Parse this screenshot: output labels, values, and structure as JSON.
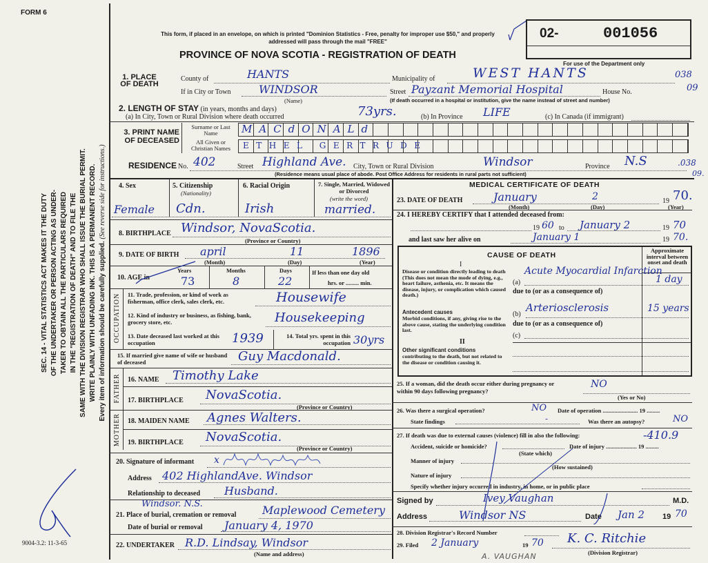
{
  "form": {
    "form_no": "FORM 6",
    "print_code": "9004-3.2: 11-3-65",
    "notice": "This form, if placed in an envelope, on which is printed \"Dominion Statistics - Free, penalty for improper use $50,\" and properly addressed will pass through the mail \"FREE\"",
    "title": "PROVINCE OF NOVA SCOTIA - REGISTRATION OF DEATH",
    "reg_prefix": "02-",
    "reg_number": "001056",
    "dept_only": "For use of the Department only",
    "side_lines": [
      "SEC. 14 - VITAL STATISTICS ACT MAKES IT THE DUTY",
      "OF THE UNDERTAKER OR PERSON ACTING AS UNDER-",
      "TAKER TO OBTAIN ALL THE PARTICULARS REQUIRED",
      "IN THE \"REGISTRATION OF DEATH\" AND TO FILE THE",
      "SAME WITH THE DIVISION REGISTRAR WHO SHALL ISSUE THE BURIAL PERMIT.",
      "WRITE PLAINLY WITH UNFADING INK. THIS IS A PERMANENT RECORD."
    ],
    "side_footer": "Every item of information should be carefully supplied.",
    "side_note": "(See reverse side for instructions.)"
  },
  "place": {
    "label": "1. PLACE OF DEATH",
    "county_label": "County of",
    "county": "HANTS",
    "municipality_label": "Municipality of",
    "municipality": "WEST HANTS",
    "code1": "038",
    "city_label": "If in City or Town",
    "city": "WINDSOR",
    "name_hint": "(Name)",
    "street_label": "Street",
    "street": "Payzant Memorial Hospital",
    "house_label": "House No.",
    "code2": "09",
    "hospital_hint": "(If death occurred in a hospital or institution, give the name instead of street and number)"
  },
  "stay": {
    "label": "2. LENGTH OF STAY",
    "hint": "(in years, months and days)",
    "a_label": "(a) In City, Town or Rural Division where death occurred",
    "a": "73yrs.",
    "b_label": "(b) In Province",
    "b": "LIFE",
    "c_label": "(c) In Canada (if immigrant)"
  },
  "name": {
    "label": "3. PRINT NAME OF DECEASED",
    "surname_label": "Surname or Last Name",
    "surname": "MACdONALd",
    "given_label": "All Given or Christian Names",
    "given": "ETHEL GERTRUDE"
  },
  "residence": {
    "label": "RESIDENCE",
    "no_label": "No.",
    "no": "402",
    "street_label": "Street",
    "street": "Highland Ave.",
    "city_label": "City, Town or Rural Division",
    "city": "Windsor",
    "province_label": "Province",
    "province": "N.S",
    "code": ".038",
    "code2": "09.",
    "hint": "(Residence means usual place of abode. Post Office Address for residents in rural parts not sufficient)"
  },
  "personal": {
    "sex_label": "4. Sex",
    "sex": "Female",
    "citizenship_label": "5. Citizenship",
    "citizenship_hint": "(Nationality)",
    "citizenship": "Cdn.",
    "racial_label": "6. Racial Origin",
    "racial": "Irish",
    "marital_label": "7. Single, Married, Widowed or Divorced",
    "marital_hint": "(write the word)",
    "marital": "married.",
    "birthplace_label": "8. BIRTHPLACE",
    "birthplace": "Windsor, NovaScotia.",
    "prov_hint": "(Province or Country)",
    "dob_label": "9. DATE OF BIRTH",
    "dob_month": "april",
    "dob_day": "11",
    "dob_year": "1896",
    "month_hint": "(Month)",
    "day_hint": "(Day)",
    "year_hint": "(Year)",
    "age_label": "10. AGE in",
    "years_label": "Years",
    "years": "73",
    "months_label": "Months",
    "months": "8",
    "days_label": "Days",
    "days": "22",
    "lt_day": "If less than one day old",
    "hrs": "hrs. or ......... min."
  },
  "occupation": {
    "side": "OCCUPATION",
    "q11": "11. Trade, profession, or kind of work as fisherman, office clerk, sales clerk, etc.",
    "a11": "Housewife",
    "q12": "12. Kind of industry or business, as fishing, bank, grocery store, etc.",
    "a12": "Housekeeping",
    "q13": "13. Date deceased last worked at this occupation",
    "a13": "1939",
    "q14": "14. Total yrs. spent in this occupation",
    "a14": "30yrs"
  },
  "spouse": {
    "label": "15. If married give name of wife or husband of deceased",
    "value": "Guy Macdonald."
  },
  "father": {
    "side": "FATHER",
    "name_label": "16. NAME",
    "name": "Timothy Lake",
    "bp_label": "17. BIRTHPLACE",
    "bp": "NovaScotia."
  },
  "mother": {
    "side": "MOTHER",
    "name_label": "18. MAIDEN NAME",
    "name": "Agnes Walters.",
    "bp_label": "19. BIRTHPLACE",
    "bp": "NovaScotia."
  },
  "informant": {
    "sig_label": "20. Signature of informant",
    "mark": "x",
    "address_label": "Address",
    "address": "402 HighlandAve. Windsor",
    "rel_label": "Relationship to deceased",
    "rel": "Husband."
  },
  "burial": {
    "place_label": "21. Place of burial, cremation or removal",
    "place_town": "Windsor. N.S.",
    "place": "Maplewood Cemetery",
    "date_label": "Date of burial or removal",
    "date": "January 4, 1970"
  },
  "undertaker": {
    "label": "22. UNDERTAKER",
    "value": "R.D. Lindsay, Windsor",
    "hint": "(Name and address)"
  },
  "medical": {
    "heading": "MEDICAL CERTIFICATE OF DEATH",
    "dod_label": "23. DATE OF DEATH",
    "dod_month": "January",
    "dod_day": "2",
    "dod_year": "70.",
    "yr19": "19",
    "certify": "24. I HEREBY CERTIFY that I attended deceased from:",
    "from_year": "60",
    "to": "to",
    "to_date": "January 2",
    "to_year": "70",
    "last_seen_label": "and last saw her alive on",
    "last_seen": "January 1",
    "last_year": "70."
  },
  "cause": {
    "heading": "CAUSE OF DEATH",
    "interval_label": "Approximate interval between onset and death",
    "roman1": "I",
    "direct": "Disease or condition directly leading to death (This does not mean the mode of dying, e.g., heart failure, asthenia, etc. It means the disease, injury, or complication which caused death.)",
    "antecedent_title": "Antecedent causes",
    "antecedent": "Morbid conditions, if any, giving rise to the above cause, stating the underlying condition last.",
    "a_label": "(a)",
    "a": "Acute Myocardial Infarction",
    "a_interval": "1 day",
    "due1": "due to (or as a consequence of)",
    "b_label": "(b)",
    "b": "Arteriosclerosis",
    "b_interval": "15 years",
    "due2": "due to (or as a consequence of)",
    "c_label": "(c)",
    "roman2": "II",
    "other_title": "Other significant conditions",
    "other": "contributing to the death, but not related to the disease or condition causing it."
  },
  "q25": {
    "label": "25. If a woman, did the death occur either during pregnancy or within 90 days following pregnancy?",
    "value": "NO",
    "hint": "(Yes or No)"
  },
  "q26": {
    "label": "26. Was there a surgical operation?",
    "value": "NO",
    "date_label": "Date of operation ........................ 19 .........",
    "findings_label": "State findings",
    "findings": "-",
    "autopsy_label": "Was there an autopsy?",
    "autopsy": "NO"
  },
  "q27": {
    "label": "27. If death was due to external causes (violence) fill in also the following:",
    "code": "-410.9",
    "accident": "Accident, suicide or homicide?",
    "state_which": "(State which)",
    "date_injury": "Date of injury ..................... 19 .........",
    "manner": "Manner of injury",
    "how": "(How sustained)",
    "nature": "Nature of injury",
    "specify": "Specify whether injury occurred in industry, in home, or in public place"
  },
  "signature": {
    "signed_label": "Signed by",
    "signed": "Ivey Vaughan",
    "md": "M.D.",
    "address_label": "Address",
    "address": "Windsor NS",
    "date_label": "Date",
    "date": "Jan 2",
    "yr19": "19",
    "year": "70"
  },
  "registrar": {
    "q28": "28. Division Registrar's Record Number",
    "q29": "29. Filed",
    "filed": "2 January",
    "yr19": "19",
    "year": "70",
    "registrar": "K. C. Ritchie",
    "reg_hint": "(Division Registrar)",
    "note": "A. VAUGHAN"
  },
  "colors": {
    "paper": "#f1f0e9",
    "ink": "#1f2f9a"
  }
}
